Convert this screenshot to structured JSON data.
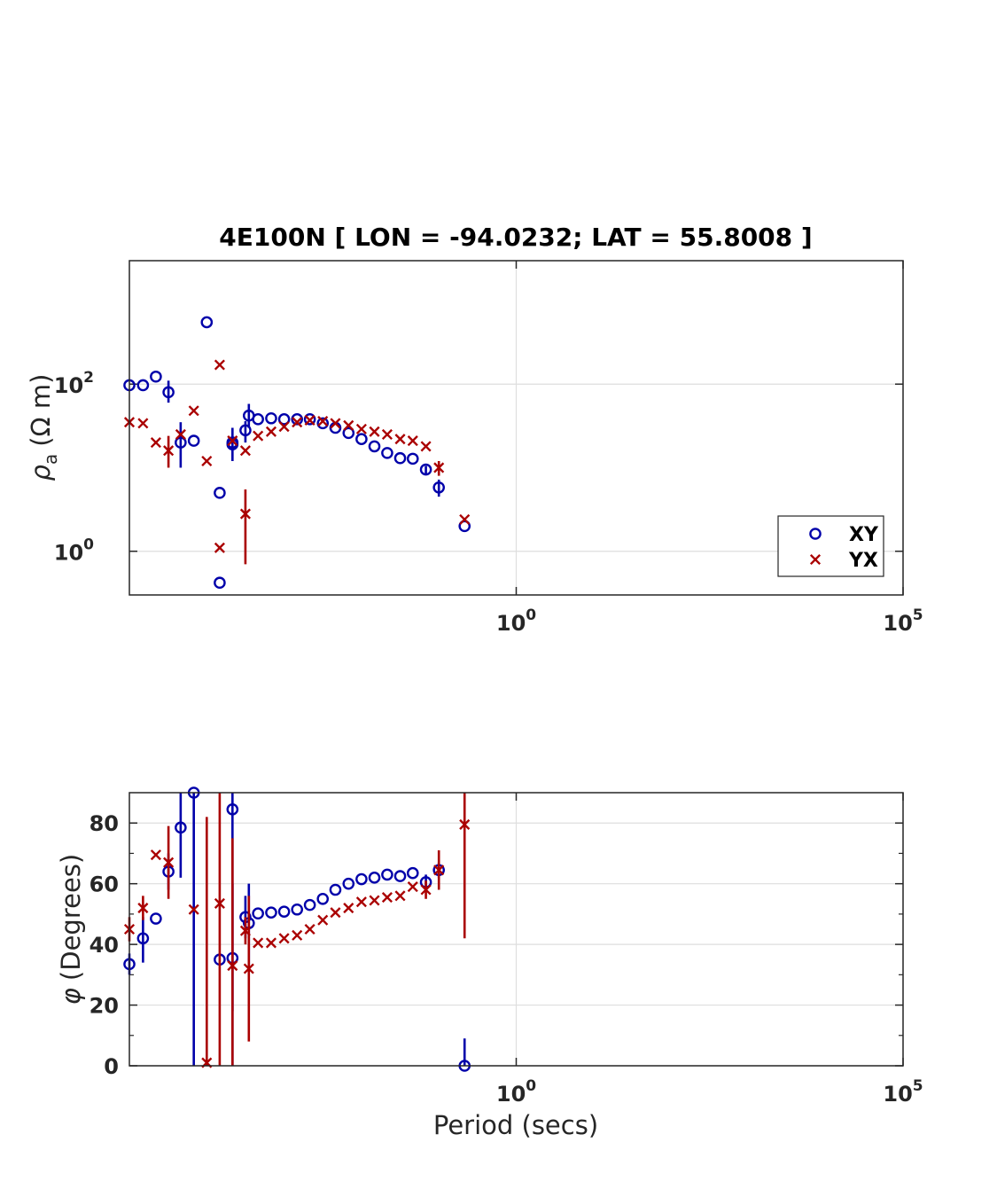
{
  "chart_data": [
    {
      "type": "scatter",
      "title": "4E100N [ LON = -94.0232; LAT = 55.8008 ]",
      "xscale": "log",
      "yscale": "log",
      "xlim": [
        1e-05,
        100000
      ],
      "ylim": [
        0.3,
        3000
      ],
      "xticks": [
        {
          "base": "10",
          "exp": "0",
          "value": 1
        },
        {
          "base": "10",
          "exp": "5",
          "value": 100000
        }
      ],
      "yticks": [
        {
          "base": "10",
          "exp": "0",
          "value": 1
        },
        {
          "base": "10",
          "exp": "2",
          "value": 100
        }
      ],
      "ylabel": {
        "symbol": "ρ",
        "subscript": "a",
        "unit": "(Ω m)"
      },
      "xlabel": "",
      "grid": true,
      "legend": {
        "position": "bottom-right",
        "entries": [
          {
            "name": "XY",
            "marker": "circle",
            "color": "#0000AA"
          },
          {
            "name": "YX",
            "marker": "x",
            "color": "#AA0000"
          }
        ]
      },
      "series": [
        {
          "name": "XY",
          "marker": "circle",
          "color": "#0000AA",
          "points": [
            {
              "x": 1e-05,
              "y": 97
            },
            {
              "x": 1.5e-05,
              "y": 97
            },
            {
              "x": 2.2e-05,
              "y": 123
            },
            {
              "x": 3.2e-05,
              "y": 80,
              "lo": 60,
              "hi": 110
            },
            {
              "x": 4.6e-05,
              "y": 20,
              "lo": 10,
              "hi": 35
            },
            {
              "x": 6.8e-05,
              "y": 21
            },
            {
              "x": 0.0001,
              "y": 550
            },
            {
              "x": 0.000147,
              "y": 5
            },
            {
              "x": 0.000147,
              "y": 0.42
            },
            {
              "x": 0.000215,
              "y": 20,
              "lo": 12,
              "hi": 30
            },
            {
              "x": 0.000215,
              "y": 19
            },
            {
              "x": 0.000316,
              "y": 28,
              "lo": 20,
              "hi": 36
            },
            {
              "x": 0.00035,
              "y": 42,
              "lo": 30,
              "hi": 58
            },
            {
              "x": 0.00046,
              "y": 38
            },
            {
              "x": 0.00068,
              "y": 39
            },
            {
              "x": 0.001,
              "y": 38
            },
            {
              "x": 0.00147,
              "y": 38
            },
            {
              "x": 0.00215,
              "y": 38
            },
            {
              "x": 0.00316,
              "y": 34
            },
            {
              "x": 0.0046,
              "y": 30
            },
            {
              "x": 0.0068,
              "y": 26
            },
            {
              "x": 0.01,
              "y": 22
            },
            {
              "x": 0.0147,
              "y": 18
            },
            {
              "x": 0.0215,
              "y": 15
            },
            {
              "x": 0.0316,
              "y": 13
            },
            {
              "x": 0.046,
              "y": 12.8
            },
            {
              "x": 0.068,
              "y": 9.5,
              "lo": 8.5,
              "hi": 10.5
            },
            {
              "x": 0.1,
              "y": 5.8,
              "lo": 4.5,
              "hi": 7.2
            },
            {
              "x": 0.215,
              "y": 2.0
            }
          ]
        },
        {
          "name": "YX",
          "marker": "x",
          "color": "#AA0000",
          "points": [
            {
              "x": 1e-05,
              "y": 35
            },
            {
              "x": 1.5e-05,
              "y": 34
            },
            {
              "x": 2.2e-05,
              "y": 20
            },
            {
              "x": 3.2e-05,
              "y": 16,
              "lo": 10,
              "hi": 24
            },
            {
              "x": 4.6e-05,
              "y": 25
            },
            {
              "x": 6.8e-05,
              "y": 48
            },
            {
              "x": 0.0001,
              "y": 12
            },
            {
              "x": 0.000147,
              "y": 170
            },
            {
              "x": 0.000147,
              "y": 1.1
            },
            {
              "x": 0.000215,
              "y": 21
            },
            {
              "x": 0.000316,
              "y": 16
            },
            {
              "x": 0.000316,
              "y": 2.8,
              "lo": 0.7,
              "hi": 5.5
            },
            {
              "x": 0.00046,
              "y": 24
            },
            {
              "x": 0.00068,
              "y": 27
            },
            {
              "x": 0.001,
              "y": 31
            },
            {
              "x": 0.00147,
              "y": 35
            },
            {
              "x": 0.00215,
              "y": 37
            },
            {
              "x": 0.00316,
              "y": 36
            },
            {
              "x": 0.0046,
              "y": 34
            },
            {
              "x": 0.0068,
              "y": 32
            },
            {
              "x": 0.01,
              "y": 29
            },
            {
              "x": 0.0147,
              "y": 27
            },
            {
              "x": 0.0215,
              "y": 25
            },
            {
              "x": 0.0316,
              "y": 22
            },
            {
              "x": 0.046,
              "y": 21
            },
            {
              "x": 0.068,
              "y": 18
            },
            {
              "x": 0.1,
              "y": 10,
              "lo": 8,
              "hi": 12
            },
            {
              "x": 0.215,
              "y": 2.4
            }
          ]
        }
      ]
    },
    {
      "type": "scatter",
      "title": "",
      "xscale": "log",
      "yscale": "linear",
      "xlim": [
        1e-05,
        100000
      ],
      "ylim": [
        0,
        90
      ],
      "xticks": [
        {
          "base": "10",
          "exp": "0",
          "value": 1
        },
        {
          "base": "10",
          "exp": "5",
          "value": 100000
        }
      ],
      "yticks": [
        0,
        20,
        40,
        60,
        80
      ],
      "ylabel": {
        "symbol": "φ",
        "unit": "(Degrees)"
      },
      "xlabel": "Period (secs)",
      "grid": true,
      "series": [
        {
          "name": "XY",
          "marker": "circle",
          "color": "#0000AA",
          "points": [
            {
              "x": 1e-05,
              "y": 33.5,
              "lo": 30,
              "hi": 37
            },
            {
              "x": 1.5e-05,
              "y": 42,
              "lo": 34,
              "hi": 49
            },
            {
              "x": 2.2e-05,
              "y": 48.5
            },
            {
              "x": 3.2e-05,
              "y": 64,
              "lo": 58,
              "hi": 70
            },
            {
              "x": 4.6e-05,
              "y": 78.5,
              "lo": 62,
              "hi": 90
            },
            {
              "x": 6.8e-05,
              "y": 90,
              "lo": 0,
              "hi": 90
            },
            {
              "x": 0.000147,
              "y": 35
            },
            {
              "x": 0.000215,
              "y": 35.5,
              "lo": 0,
              "hi": 60
            },
            {
              "x": 0.000215,
              "y": 84.5,
              "lo": 18,
              "hi": 90
            },
            {
              "x": 0.000316,
              "y": 49,
              "lo": 42,
              "hi": 56
            },
            {
              "x": 0.00035,
              "y": 47,
              "lo": 33,
              "hi": 60
            },
            {
              "x": 0.00046,
              "y": 50.2
            },
            {
              "x": 0.00068,
              "y": 50.5
            },
            {
              "x": 0.001,
              "y": 50.8
            },
            {
              "x": 0.00147,
              "y": 51.5
            },
            {
              "x": 0.00215,
              "y": 53
            },
            {
              "x": 0.00316,
              "y": 55
            },
            {
              "x": 0.0046,
              "y": 58
            },
            {
              "x": 0.0068,
              "y": 60
            },
            {
              "x": 0.01,
              "y": 61.5
            },
            {
              "x": 0.0147,
              "y": 62
            },
            {
              "x": 0.0215,
              "y": 63
            },
            {
              "x": 0.0316,
              "y": 62.5
            },
            {
              "x": 0.046,
              "y": 63.5
            },
            {
              "x": 0.068,
              "y": 60.5,
              "lo": 58,
              "hi": 63
            },
            {
              "x": 0.1,
              "y": 64.5,
              "lo": 62,
              "hi": 67
            },
            {
              "x": 0.215,
              "y": 0,
              "lo": 0,
              "hi": 9
            }
          ]
        },
        {
          "name": "YX",
          "marker": "x",
          "color": "#AA0000",
          "points": [
            {
              "x": 1e-05,
              "y": 45,
              "lo": 41,
              "hi": 49
            },
            {
              "x": 1.5e-05,
              "y": 52,
              "lo": 48,
              "hi": 56
            },
            {
              "x": 2.2e-05,
              "y": 69.5
            },
            {
              "x": 3.2e-05,
              "y": 67,
              "lo": 55,
              "hi": 79
            },
            {
              "x": 6.8e-05,
              "y": 51.5
            },
            {
              "x": 0.0001,
              "y": 1,
              "lo": 0,
              "hi": 82
            },
            {
              "x": 0.000147,
              "y": 53.5,
              "lo": 0,
              "hi": 90
            },
            {
              "x": 0.000215,
              "y": 33,
              "lo": 0,
              "hi": 75
            },
            {
              "x": 0.000316,
              "y": 44.5,
              "lo": 40,
              "hi": 49
            },
            {
              "x": 0.00035,
              "y": 32,
              "lo": 8,
              "hi": 56
            },
            {
              "x": 0.00046,
              "y": 40.5
            },
            {
              "x": 0.00068,
              "y": 40.5
            },
            {
              "x": 0.001,
              "y": 42
            },
            {
              "x": 0.00147,
              "y": 43
            },
            {
              "x": 0.00215,
              "y": 45
            },
            {
              "x": 0.00316,
              "y": 48
            },
            {
              "x": 0.0046,
              "y": 50.5
            },
            {
              "x": 0.0068,
              "y": 52
            },
            {
              "x": 0.01,
              "y": 54
            },
            {
              "x": 0.0147,
              "y": 54.5
            },
            {
              "x": 0.0215,
              "y": 55.5
            },
            {
              "x": 0.0316,
              "y": 56
            },
            {
              "x": 0.046,
              "y": 59
            },
            {
              "x": 0.068,
              "y": 58,
              "lo": 55,
              "hi": 61
            },
            {
              "x": 0.1,
              "y": 64.5,
              "lo": 58,
              "hi": 71
            },
            {
              "x": 0.215,
              "y": 79.5,
              "lo": 42,
              "hi": 90
            }
          ]
        }
      ]
    }
  ]
}
